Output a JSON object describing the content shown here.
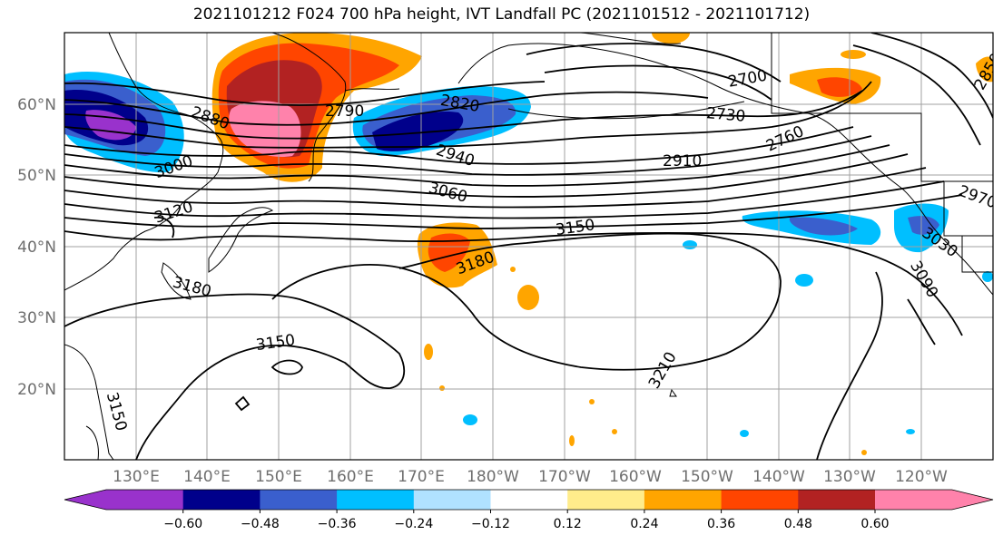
{
  "title": "2021101212 F024 700 hPa height, IVT Landfall PC (2021101512 - 2021101712)",
  "lat_labels": [
    "60°N",
    "50°N",
    "40°N",
    "30°N",
    "20°N"
  ],
  "lon_labels": [
    "130°E",
    "140°E",
    "150°E",
    "160°E",
    "170°E",
    "180°W",
    "170°W",
    "160°W",
    "150°W",
    "140°W",
    "130°W",
    "120°W"
  ],
  "contour_labels": [
    "2880",
    "3000",
    "3120",
    "2790",
    "2820",
    "2940",
    "3060",
    "3150",
    "3180",
    "2910",
    "2730",
    "2700",
    "2760",
    "2850",
    "2970",
    "3030",
    "3090",
    "3150",
    "3210",
    "3150",
    "3180"
  ],
  "colorbar": {
    "ticks": [
      "−0.60",
      "−0.48",
      "−0.36",
      "−0.24",
      "−0.12",
      "0.12",
      "0.24",
      "0.36",
      "0.48",
      "0.60"
    ],
    "colors": [
      "#9932cc",
      "#00008b",
      "#3a5fcd",
      "#00bfff",
      "#b0e2ff",
      "#ffffff",
      "#ffec8b",
      "#ffa500",
      "#ff4500",
      "#b22222",
      "#ff82ab"
    ]
  }
}
